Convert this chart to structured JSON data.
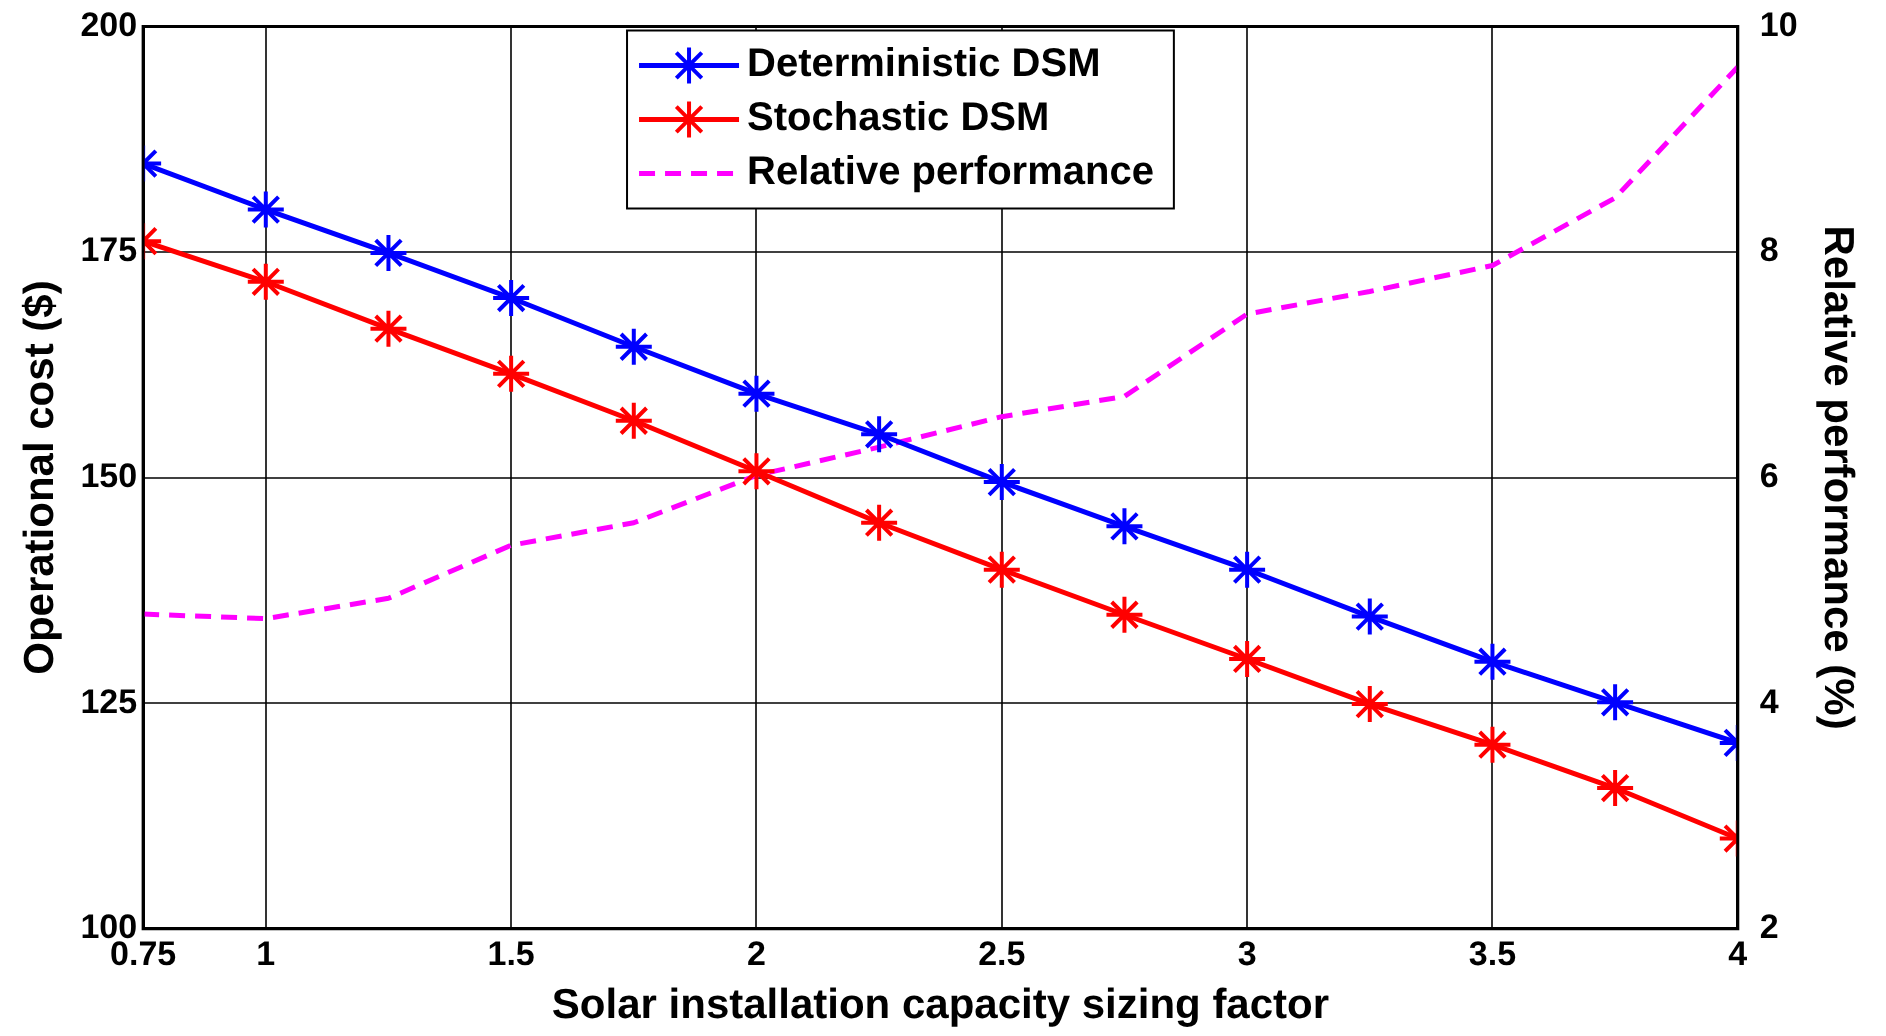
{
  "chart_data": {
    "type": "line",
    "xlabel": "Solar installation capacity sizing factor",
    "ylabel": "Operational cost ($)",
    "y2label": "Relative performance (%)",
    "x": [
      0.75,
      1,
      1.25,
      1.5,
      1.75,
      2,
      2.25,
      2.5,
      2.75,
      3,
      3.25,
      3.5,
      3.75,
      4
    ],
    "series": [
      {
        "name": "Deterministic DSM",
        "color": "#0000ff",
        "marker": "cross",
        "line_style": "solid",
        "values": [
          184.8,
          179.7,
          174.9,
          169.9,
          164.5,
          159.3,
          154.8,
          149.5,
          144.6,
          139.8,
          134.6,
          129.6,
          125.1,
          120.6
        ]
      },
      {
        "name": "Stochastic DSM",
        "color": "#ff0000",
        "marker": "cross",
        "line_style": "solid",
        "values": [
          176.2,
          171.7,
          166.5,
          161.5,
          156.3,
          150.7,
          145,
          139.8,
          134.8,
          129.9,
          124.9,
          120.4,
          115.6,
          110
        ]
      },
      {
        "name": "Relative performance",
        "color": "#ff00ff",
        "marker": "none",
        "line_style": "dashed",
        "axis": "y2",
        "values": [
          4.79,
          4.75,
          4.93,
          5.4,
          5.6,
          6.02,
          6.27,
          6.54,
          6.72,
          7.45,
          7.65,
          7.88,
          8.48,
          9.64
        ]
      }
    ],
    "xlim": [
      0.75,
      4
    ],
    "xticks": [
      0.75,
      1,
      1.5,
      2,
      2.5,
      3,
      3.5,
      4
    ],
    "ylim": [
      100,
      200
    ],
    "yticks": [
      100,
      125,
      150,
      175,
      200
    ],
    "y2lim": [
      2,
      10
    ],
    "y2ticks": [
      2,
      4,
      6,
      8,
      10
    ],
    "grid": true,
    "legend": "top"
  }
}
